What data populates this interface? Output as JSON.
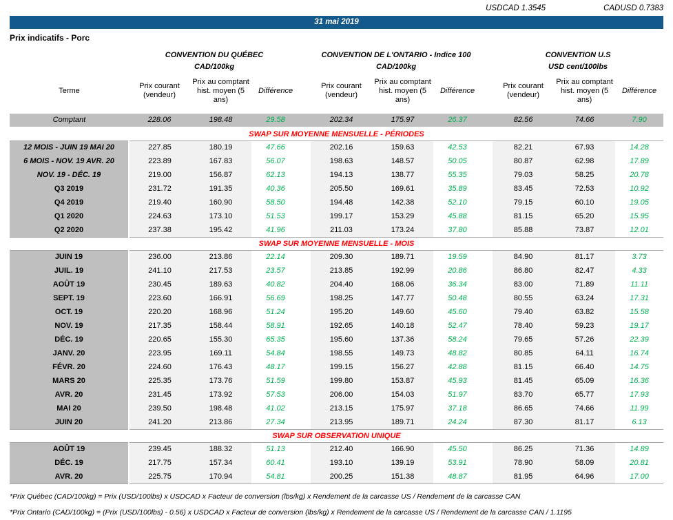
{
  "fx": {
    "usdcad": "USDCAD 1.3545",
    "cadusd": "CADUSD 0.7383"
  },
  "banner": {
    "date": "31 mai 2019"
  },
  "page_title": "Prix indicatifs - Porc",
  "colors": {
    "banner_blue": "#14598C",
    "row_grey": "#BFBFBF",
    "column_grey": "#F1F1F1",
    "difference_green": "#00B050",
    "section_red": "#FF0000"
  },
  "table": {
    "groups": [
      {
        "title": "CONVENTION DU QUÉBEC",
        "unit": "CAD/100kg"
      },
      {
        "title": "CONVENTION DE L'ONTARIO - Indice 100",
        "unit": "CAD/100kg"
      },
      {
        "title": "CONVENTION U.S",
        "unit": "USD cent/100lbs"
      }
    ],
    "col_headers": {
      "terme": "Terme",
      "prix_courant": "Prix courant (vendeur)",
      "prix_comptant": "Prix au comptant hist. moyen (5 ans)",
      "difference": "Différence"
    },
    "spot_row": {
      "label": "Comptant",
      "values": [
        "228.06",
        "198.48",
        "29.58",
        "202.34",
        "175.97",
        "26.37",
        "82.56",
        "74.66",
        "7.90"
      ]
    },
    "sections": [
      {
        "title": "SWAP SUR MOYENNE MENSUELLE - PÉRIODES",
        "rows": [
          {
            "label": "12 MOIS -  JUIN 19 MAI 20",
            "italic": true,
            "values": [
              "227.85",
              "180.19",
              "47.66",
              "202.16",
              "159.63",
              "42.53",
              "82.21",
              "67.93",
              "14.28"
            ]
          },
          {
            "label": "6 MOIS -  NOV. 19 AVR. 20",
            "italic": true,
            "values": [
              "223.89",
              "167.83",
              "56.07",
              "198.63",
              "148.57",
              "50.05",
              "80.87",
              "62.98",
              "17.89"
            ]
          },
          {
            "label": "NOV. 19 -  DÉC. 19",
            "italic": true,
            "values": [
              "219.00",
              "156.87",
              "62.13",
              "194.13",
              "138.77",
              "55.35",
              "79.03",
              "58.25",
              "20.78"
            ]
          },
          {
            "label": "Q3 2019",
            "italic": false,
            "values": [
              "231.72",
              "191.35",
              "40.36",
              "205.50",
              "169.61",
              "35.89",
              "83.45",
              "72.53",
              "10.92"
            ]
          },
          {
            "label": "Q4 2019",
            "italic": false,
            "values": [
              "219.40",
              "160.90",
              "58.50",
              "194.48",
              "142.38",
              "52.10",
              "79.15",
              "60.10",
              "19.05"
            ]
          },
          {
            "label": "Q1 2020",
            "italic": false,
            "values": [
              "224.63",
              "173.10",
              "51.53",
              "199.17",
              "153.29",
              "45.88",
              "81.15",
              "65.20",
              "15.95"
            ]
          },
          {
            "label": "Q2 2020",
            "italic": false,
            "values": [
              "237.38",
              "195.42",
              "41.96",
              "211.03",
              "173.24",
              "37.80",
              "85.88",
              "73.87",
              "12.01"
            ]
          }
        ]
      },
      {
        "title": "SWAP SUR MOYENNE MENSUELLE - MOIS",
        "rows": [
          {
            "label": "JUIN 19",
            "italic": false,
            "values": [
              "236.00",
              "213.86",
              "22.14",
              "209.30",
              "189.71",
              "19.59",
              "84.90",
              "81.17",
              "3.73"
            ]
          },
          {
            "label": "JUIL. 19",
            "italic": false,
            "values": [
              "241.10",
              "217.53",
              "23.57",
              "213.85",
              "192.99",
              "20.86",
              "86.80",
              "82.47",
              "4.33"
            ]
          },
          {
            "label": "AOÛT 19",
            "italic": false,
            "values": [
              "230.45",
              "189.63",
              "40.82",
              "204.40",
              "168.06",
              "36.34",
              "83.00",
              "71.89",
              "11.11"
            ]
          },
          {
            "label": "SEPT. 19",
            "italic": false,
            "values": [
              "223.60",
              "166.91",
              "56.69",
              "198.25",
              "147.77",
              "50.48",
              "80.55",
              "63.24",
              "17.31"
            ]
          },
          {
            "label": "OCT. 19",
            "italic": false,
            "values": [
              "220.20",
              "168.96",
              "51.24",
              "195.20",
              "149.60",
              "45.60",
              "79.40",
              "63.82",
              "15.58"
            ]
          },
          {
            "label": "NOV. 19",
            "italic": false,
            "values": [
              "217.35",
              "158.44",
              "58.91",
              "192.65",
              "140.18",
              "52.47",
              "78.40",
              "59.23",
              "19.17"
            ]
          },
          {
            "label": "DÉC. 19",
            "italic": false,
            "values": [
              "220.65",
              "155.30",
              "65.35",
              "195.60",
              "137.36",
              "58.24",
              "79.65",
              "57.26",
              "22.39"
            ]
          },
          {
            "label": "JANV. 20",
            "italic": false,
            "values": [
              "223.95",
              "169.11",
              "54.84",
              "198.55",
              "149.73",
              "48.82",
              "80.85",
              "64.11",
              "16.74"
            ]
          },
          {
            "label": "FÉVR. 20",
            "italic": false,
            "values": [
              "224.60",
              "176.43",
              "48.17",
              "199.15",
              "156.27",
              "42.88",
              "81.15",
              "66.40",
              "14.75"
            ]
          },
          {
            "label": "MARS 20",
            "italic": false,
            "values": [
              "225.35",
              "173.76",
              "51.59",
              "199.80",
              "153.87",
              "45.93",
              "81.45",
              "65.09",
              "16.36"
            ]
          },
          {
            "label": "AVR. 20",
            "italic": false,
            "values": [
              "231.45",
              "173.92",
              "57.53",
              "206.00",
              "154.03",
              "51.97",
              "83.70",
              "65.77",
              "17.93"
            ]
          },
          {
            "label": "MAI 20",
            "italic": false,
            "values": [
              "239.50",
              "198.48",
              "41.02",
              "213.15",
              "175.97",
              "37.18",
              "86.65",
              "74.66",
              "11.99"
            ]
          },
          {
            "label": "JUIN 20",
            "italic": false,
            "values": [
              "241.20",
              "213.86",
              "27.34",
              "213.95",
              "189.71",
              "24.24",
              "87.30",
              "81.17",
              "6.13"
            ]
          }
        ]
      },
      {
        "title": "SWAP SUR OBSERVATION UNIQUE",
        "rows": [
          {
            "label": "AOÛT 19",
            "italic": false,
            "values": [
              "239.45",
              "188.32",
              "51.13",
              "212.40",
              "166.90",
              "45.50",
              "86.25",
              "71.36",
              "14.89"
            ]
          },
          {
            "label": "DÉC. 19",
            "italic": false,
            "values": [
              "217.75",
              "157.34",
              "60.41",
              "193.10",
              "139.19",
              "53.91",
              "78.90",
              "58.09",
              "20.81"
            ]
          },
          {
            "label": "AVR. 20",
            "italic": false,
            "values": [
              "225.75",
              "170.94",
              "54.81",
              "200.25",
              "151.38",
              "48.87",
              "81.95",
              "64.96",
              "17.00"
            ]
          }
        ]
      }
    ]
  },
  "footnotes": [
    "*Prix Québec (CAD/100kg) = Prix (USD/100lbs) x USDCAD x Facteur de conversion (lbs/kg) x Rendement de la carcasse US / Rendement de la carcasse CAN",
    "*Prix Ontario (CAD/100kg) = (Prix (USD/100lbs) - 0.56) x USDCAD x Facteur de conversion (lbs/kg) x Rendement de la carcasse US / Rendement de la carcasse CAN / 1.1195"
  ]
}
